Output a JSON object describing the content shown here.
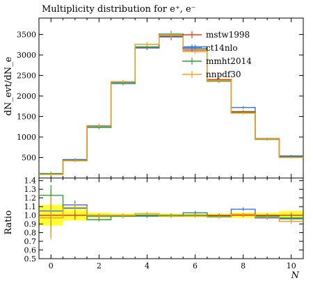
{
  "chart_data": [
    {
      "type": "line",
      "title": "Multiplicity distribution for e⁺, e⁻",
      "ylabel": "dN_evt/dN_e",
      "xlabel": "N",
      "xlim": [
        -0.5,
        10.5
      ],
      "ylim": [
        0,
        3900
      ],
      "x_ticks": [
        0,
        2,
        4,
        6,
        8,
        10
      ],
      "y_ticks": [
        500,
        1000,
        1500,
        2000,
        2500,
        3000,
        3500
      ],
      "legend_position": "top-right",
      "series": [
        {
          "name": "mstw1998",
          "color": "#e8380d",
          "values": [
            90,
            440,
            1270,
            2340,
            3180,
            3460,
            3120,
            2400,
            1620,
            960,
            520
          ],
          "errors": [
            40,
            30,
            40,
            40,
            50,
            80,
            50,
            40,
            30,
            25,
            20
          ]
        },
        {
          "name": "ct14nlo",
          "color": "#3a6fd8",
          "values": [
            95,
            450,
            1260,
            2330,
            3170,
            3440,
            3200,
            2380,
            1720,
            950,
            540
          ],
          "errors": [
            40,
            30,
            40,
            40,
            50,
            80,
            50,
            40,
            30,
            25,
            20
          ]
        },
        {
          "name": "mmht2014",
          "color": "#2ea12e",
          "values": [
            110,
            420,
            1230,
            2300,
            3200,
            3510,
            3160,
            2360,
            1600,
            940,
            510
          ],
          "errors": [
            40,
            30,
            40,
            40,
            50,
            80,
            50,
            40,
            30,
            25,
            20
          ]
        },
        {
          "name": "nnpdf30",
          "color": "#f0a020",
          "values": [
            85,
            425,
            1280,
            2350,
            3260,
            3480,
            3080,
            2380,
            1580,
            950,
            500
          ],
          "errors": [
            40,
            30,
            40,
            40,
            50,
            80,
            50,
            40,
            30,
            25,
            20
          ]
        }
      ]
    },
    {
      "type": "line",
      "ylabel": "Ratio",
      "xlabel": "N",
      "xlim": [
        -0.5,
        10.5
      ],
      "ylim": [
        0.5,
        1.43
      ],
      "x_ticks": [
        0,
        2,
        4,
        6,
        8,
        10
      ],
      "y_ticks": [
        0.5,
        0.6,
        0.7,
        0.8,
        0.9,
        1.0,
        1.1,
        1.2,
        1.3,
        1.4
      ],
      "band": {
        "color": "#ffff33",
        "upper": [
          1.12,
          1.06,
          1.03,
          1.02,
          1.02,
          1.02,
          1.02,
          1.02,
          1.03,
          1.03,
          1.05
        ],
        "lower": [
          0.88,
          0.94,
          0.97,
          0.98,
          0.98,
          0.98,
          0.98,
          0.98,
          0.97,
          0.97,
          0.95
        ]
      },
      "series": [
        {
          "name": "mstw1998",
          "color": "#e8380d",
          "values": [
            1.0,
            1.0,
            1.0,
            1.0,
            1.0,
            1.0,
            1.0,
            1.0,
            1.0,
            1.0,
            1.0
          ],
          "errors": [
            0.25,
            0.05,
            0.02,
            0.02,
            0.02,
            0.02,
            0.02,
            0.02,
            0.02,
            0.02,
            0.03
          ]
        },
        {
          "name": "ct14nlo",
          "color": "#3a6fd8",
          "values": [
            1.05,
            1.12,
            0.99,
            0.99,
            0.99,
            0.99,
            1.03,
            0.99,
            1.07,
            0.97,
            0.96
          ],
          "errors": [
            0.25,
            0.05,
            0.02,
            0.02,
            0.02,
            0.02,
            0.02,
            0.02,
            0.02,
            0.02,
            0.03
          ]
        },
        {
          "name": "mmht2014",
          "color": "#2ea12e",
          "values": [
            1.23,
            1.08,
            0.95,
            0.99,
            1.0,
            1.0,
            1.0,
            0.99,
            1.01,
            0.99,
            0.97
          ],
          "errors": [
            0.12,
            0.05,
            0.02,
            0.02,
            0.02,
            0.02,
            0.02,
            0.02,
            0.02,
            0.02,
            0.03
          ]
        },
        {
          "name": "nnpdf30",
          "color": "#f0a020",
          "values": [
            0.97,
            1.09,
            1.0,
            1.0,
            1.02,
            0.99,
            0.99,
            0.98,
            1.01,
            0.98,
            0.93
          ],
          "errors": [
            0.25,
            0.05,
            0.02,
            0.02,
            0.02,
            0.02,
            0.02,
            0.02,
            0.02,
            0.02,
            0.03
          ]
        }
      ]
    }
  ]
}
